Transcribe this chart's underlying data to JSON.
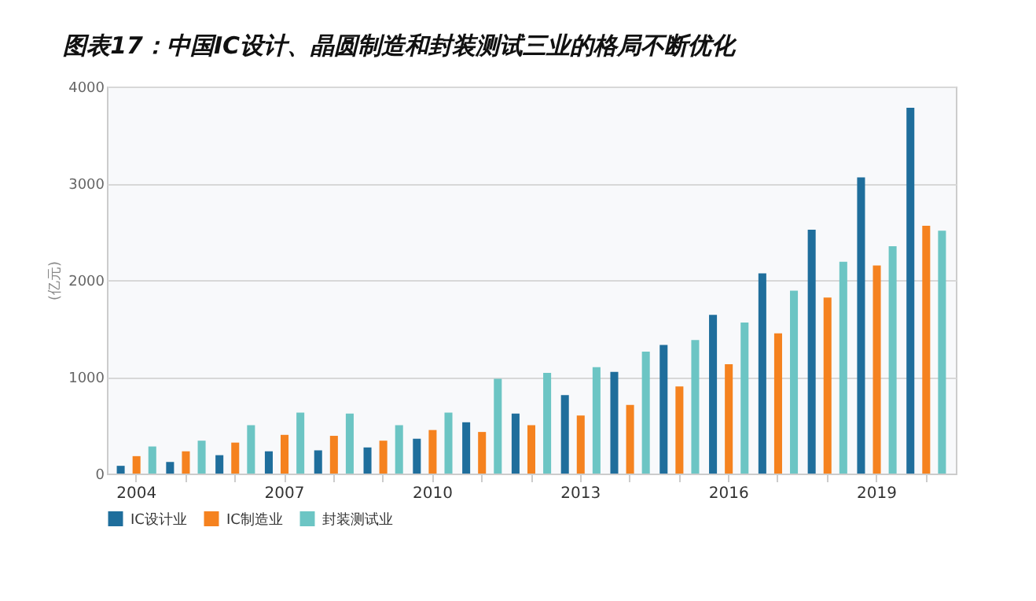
{
  "chart_data": {
    "type": "bar",
    "title": "图表17：中国IC设计、晶圆制造和封装测试三业的格局不断优化",
    "ylabel": "(亿元)",
    "categories": [
      "2004",
      null,
      null,
      "2007",
      null,
      null,
      "2010",
      null,
      null,
      "2013",
      null,
      null,
      "2016",
      null,
      null,
      "2019",
      null
    ],
    "series": [
      {
        "name": "IC设计业",
        "color": "#1f6e9c",
        "values": [
          80,
          120,
          190,
          230,
          240,
          270,
          360,
          530,
          620,
          810,
          1050,
          1330,
          1640,
          2070,
          2520,
          3060,
          3780
        ]
      },
      {
        "name": "IC制造业",
        "color": "#f5821f",
        "values": [
          180,
          230,
          320,
          400,
          390,
          340,
          450,
          430,
          500,
          600,
          710,
          900,
          1130,
          1450,
          1820,
          2150,
          2560
        ]
      },
      {
        "name": "封装测试业",
        "color": "#6cc5c4",
        "values": [
          280,
          340,
          500,
          630,
          620,
          500,
          630,
          980,
          1040,
          1100,
          1260,
          1380,
          1560,
          1890,
          2190,
          2350,
          2510
        ]
      }
    ],
    "ylim": [
      0,
      4000
    ],
    "yticks": [
      0,
      1000,
      2000,
      3000,
      4000
    ],
    "grid": "y",
    "legend": "bottom"
  }
}
